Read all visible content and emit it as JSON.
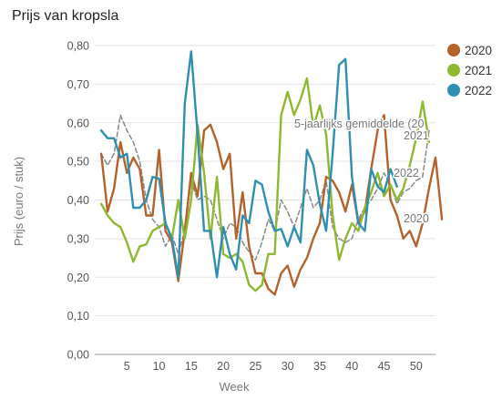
{
  "chart_data": {
    "type": "line",
    "title": "Prijs van kropsla",
    "xlabel": "Week",
    "ylabel": "Prijs (euro / stuk)",
    "xlim": [
      0,
      53
    ],
    "ylim": [
      0,
      0.8
    ],
    "xticks": [
      5,
      10,
      15,
      20,
      25,
      30,
      35,
      40,
      45,
      50
    ],
    "yticks": [
      0,
      0.1,
      0.2,
      0.3,
      0.4,
      0.5,
      0.6,
      0.7,
      0.8
    ],
    "ytick_labels": [
      "0,00",
      "0,10",
      "0,20",
      "0,30",
      "0,40",
      "0,50",
      "0,60",
      "0,70",
      "0,80"
    ],
    "grid": "horizontal",
    "legend_position": "right",
    "series": [
      {
        "name": "2020",
        "end_label": "2020",
        "color": "#b5622a",
        "values": [
          0.52,
          0.37,
          0.43,
          0.55,
          0.47,
          0.51,
          0.48,
          0.36,
          0.36,
          0.53,
          0.32,
          0.29,
          0.19,
          0.32,
          0.47,
          0.41,
          0.58,
          0.595,
          0.55,
          0.48,
          0.52,
          0.3,
          0.42,
          0.28,
          0.21,
          0.21,
          0.17,
          0.155,
          0.21,
          0.23,
          0.175,
          0.22,
          0.25,
          0.3,
          0.34,
          0.46,
          0.45,
          0.42,
          0.37,
          0.44,
          0.34,
          0.37,
          0.48,
          0.58,
          0.62,
          0.4,
          0.36,
          0.3,
          0.32,
          0.28,
          0.34,
          0.43,
          0.51,
          0.35
        ]
      },
      {
        "name": "2021",
        "end_label": "2021",
        "color": "#8db82f",
        "values": [
          0.39,
          0.36,
          0.34,
          0.33,
          0.29,
          0.24,
          0.28,
          0.285,
          0.32,
          0.33,
          0.34,
          0.3,
          0.4,
          0.3,
          0.4,
          0.595,
          0.47,
          0.3,
          0.46,
          0.26,
          0.25,
          0.26,
          0.24,
          0.18,
          0.165,
          0.18,
          0.26,
          0.26,
          0.62,
          0.68,
          0.62,
          0.66,
          0.715,
          0.59,
          0.645,
          0.57,
          0.36,
          0.245,
          0.3,
          0.34,
          0.32,
          0.38,
          0.42,
          0.47,
          0.41,
          0.44,
          0.4,
          0.43,
          0.49,
          0.56,
          0.655,
          0.55
        ]
      },
      {
        "name": "2022",
        "end_label": "2022",
        "color": "#2f8fb0",
        "values": [
          0.58,
          0.56,
          0.56,
          0.51,
          0.52,
          0.38,
          0.38,
          0.4,
          0.46,
          0.455,
          0.34,
          0.3,
          0.2,
          0.65,
          0.785,
          0.57,
          0.32,
          0.32,
          0.2,
          0.33,
          0.26,
          0.22,
          0.36,
          0.34,
          0.45,
          0.44,
          0.37,
          0.32,
          0.325,
          0.28,
          0.33,
          0.29,
          0.53,
          0.49,
          0.39,
          0.32,
          0.52,
          0.75,
          0.765,
          0.46,
          0.34,
          0.32,
          0.48,
          0.435,
          0.42,
          0.48,
          0.435
        ]
      },
      {
        "name": "5-jaarlijks gemiddelde (20",
        "end_label": "5-jaarlijks gemiddelde (20",
        "color": "#888888",
        "dashed": true,
        "values": [
          0.52,
          0.49,
          0.52,
          0.62,
          0.58,
          0.55,
          0.5,
          0.4,
          0.35,
          0.33,
          0.28,
          0.31,
          0.26,
          0.32,
          0.45,
          0.4,
          0.41,
          0.4,
          0.35,
          0.3,
          0.34,
          0.33,
          0.29,
          0.265,
          0.245,
          0.29,
          0.35,
          0.32,
          0.4,
          0.37,
          0.33,
          0.38,
          0.43,
          0.38,
          0.4,
          0.45,
          0.33,
          0.3,
          0.29,
          0.3,
          0.35,
          0.38,
          0.4,
          0.43,
          0.47,
          0.44,
          0.39,
          0.42,
          0.43,
          0.45,
          0.46,
          0.58
        ]
      }
    ],
    "legend": [
      "2020",
      "2021",
      "2022"
    ]
  }
}
